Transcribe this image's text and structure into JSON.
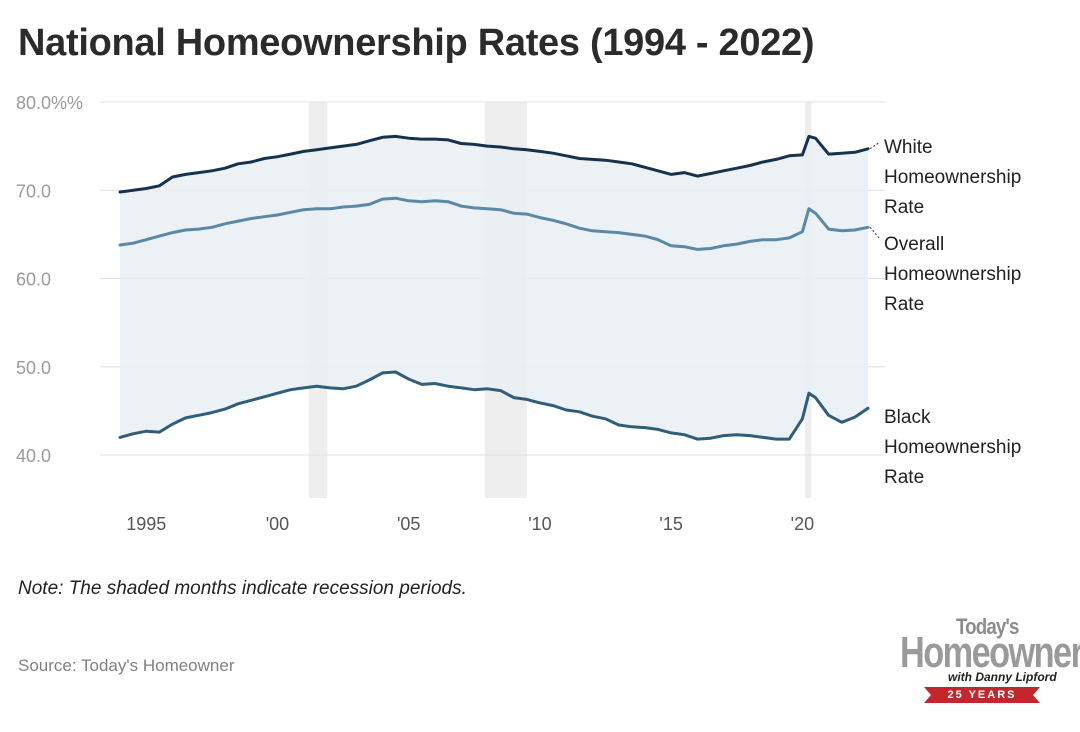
{
  "title": "National Homeownership Rates (1994 - 2022)",
  "note": "Note: The shaded months indicate recession periods.",
  "source": "Source: Today's Homeowner",
  "logo": {
    "line1": "Today's",
    "line2": "Homeowner",
    "line3": "with Danny Lipford",
    "badge": "25 YEARS"
  },
  "colors": {
    "white": "#17324d",
    "overall": "#5b88a5",
    "black": "#2f5d7a",
    "band": "#e8eff3",
    "recession": "#eeeeee",
    "grid": "#e0e0e0"
  },
  "chart_data": {
    "type": "line",
    "title": "National Homeownership Rates (1994 - 2022)",
    "xlabel": "",
    "ylabel": "",
    "ylim": [
      35,
      80
    ],
    "xlim": [
      1993.0,
      2023.0
    ],
    "y_ticks": [
      {
        "value": 80,
        "label": "80.0%%"
      },
      {
        "value": 70,
        "label": "70.0"
      },
      {
        "value": 60,
        "label": "60.0"
      },
      {
        "value": 50,
        "label": "50.0"
      },
      {
        "value": 40,
        "label": "40.0"
      }
    ],
    "x_ticks": [
      {
        "value": 1995,
        "label": "1995"
      },
      {
        "value": 2000,
        "label": "'00"
      },
      {
        "value": 2005,
        "label": "'05"
      },
      {
        "value": 2010,
        "label": "'10"
      },
      {
        "value": 2015,
        "label": "'15"
      },
      {
        "value": 2020,
        "label": "'20"
      }
    ],
    "recessions": [
      [
        2001.2,
        2001.9
      ],
      [
        2007.9,
        2009.5
      ],
      [
        2020.1,
        2020.35
      ]
    ],
    "shaded_band": {
      "between": [
        "White Homeownership Rate",
        "Black Homeownership Rate"
      ]
    },
    "series": [
      {
        "name": "White Homeownership Rate",
        "label_lines": [
          "White",
          "Homeownership",
          "Rate"
        ],
        "x": [
          1994.0,
          1994.5,
          1995.0,
          1995.5,
          1996.0,
          1996.5,
          1997.0,
          1997.5,
          1998.0,
          1998.5,
          1999.0,
          1999.5,
          2000.0,
          2000.5,
          2001.0,
          2001.5,
          2002.0,
          2002.5,
          2003.0,
          2003.5,
          2004.0,
          2004.5,
          2005.0,
          2005.5,
          2006.0,
          2006.5,
          2007.0,
          2007.5,
          2008.0,
          2008.5,
          2009.0,
          2009.5,
          2010.0,
          2010.5,
          2011.0,
          2011.5,
          2012.0,
          2012.5,
          2013.0,
          2013.5,
          2014.0,
          2014.5,
          2015.0,
          2015.5,
          2016.0,
          2016.5,
          2017.0,
          2017.5,
          2018.0,
          2018.5,
          2019.0,
          2019.5,
          2020.0,
          2020.25,
          2020.5,
          2021.0,
          2021.5,
          2022.0,
          2022.5
        ],
        "values": [
          69.8,
          70.0,
          70.2,
          70.5,
          71.5,
          71.8,
          72.0,
          72.2,
          72.5,
          73.0,
          73.2,
          73.6,
          73.8,
          74.1,
          74.4,
          74.6,
          74.8,
          75.0,
          75.2,
          75.6,
          76.0,
          76.1,
          75.9,
          75.8,
          75.8,
          75.7,
          75.3,
          75.2,
          75.0,
          74.9,
          74.7,
          74.6,
          74.4,
          74.2,
          73.9,
          73.6,
          73.5,
          73.4,
          73.2,
          73.0,
          72.6,
          72.2,
          71.8,
          72.0,
          71.6,
          71.9,
          72.2,
          72.5,
          72.8,
          73.2,
          73.5,
          73.9,
          74.0,
          76.1,
          75.9,
          74.1,
          74.2,
          74.3,
          74.7
        ]
      },
      {
        "name": "Overall Homeownership Rate",
        "label_lines": [
          "Overall",
          "Homeownership",
          "Rate"
        ],
        "x": [
          1994.0,
          1994.5,
          1995.0,
          1995.5,
          1996.0,
          1996.5,
          1997.0,
          1997.5,
          1998.0,
          1998.5,
          1999.0,
          1999.5,
          2000.0,
          2000.5,
          2001.0,
          2001.5,
          2002.0,
          2002.5,
          2003.0,
          2003.5,
          2004.0,
          2004.5,
          2005.0,
          2005.5,
          2006.0,
          2006.5,
          2007.0,
          2007.5,
          2008.0,
          2008.5,
          2009.0,
          2009.5,
          2010.0,
          2010.5,
          2011.0,
          2011.5,
          2012.0,
          2012.5,
          2013.0,
          2013.5,
          2014.0,
          2014.5,
          2015.0,
          2015.5,
          2016.0,
          2016.5,
          2017.0,
          2017.5,
          2018.0,
          2018.5,
          2019.0,
          2019.5,
          2020.0,
          2020.25,
          2020.5,
          2021.0,
          2021.5,
          2022.0,
          2022.5
        ],
        "values": [
          63.8,
          64.0,
          64.4,
          64.8,
          65.2,
          65.5,
          65.6,
          65.8,
          66.2,
          66.5,
          66.8,
          67.0,
          67.2,
          67.5,
          67.8,
          67.9,
          67.9,
          68.1,
          68.2,
          68.4,
          69.0,
          69.1,
          68.8,
          68.7,
          68.8,
          68.7,
          68.2,
          68.0,
          67.9,
          67.8,
          67.4,
          67.3,
          66.9,
          66.6,
          66.2,
          65.7,
          65.4,
          65.3,
          65.2,
          65.0,
          64.8,
          64.4,
          63.7,
          63.6,
          63.3,
          63.4,
          63.7,
          63.9,
          64.2,
          64.4,
          64.4,
          64.6,
          65.3,
          67.9,
          67.4,
          65.6,
          65.4,
          65.5,
          65.8
        ]
      },
      {
        "name": "Black Homeownership Rate",
        "label_lines": [
          "Black",
          "Homeownership",
          "Rate"
        ],
        "x": [
          1994.0,
          1994.5,
          1995.0,
          1995.5,
          1996.0,
          1996.5,
          1997.0,
          1997.5,
          1998.0,
          1998.5,
          1999.0,
          1999.5,
          2000.0,
          2000.5,
          2001.0,
          2001.5,
          2002.0,
          2002.5,
          2003.0,
          2003.5,
          2004.0,
          2004.5,
          2005.0,
          2005.5,
          2006.0,
          2006.5,
          2007.0,
          2007.5,
          2008.0,
          2008.5,
          2009.0,
          2009.5,
          2010.0,
          2010.5,
          2011.0,
          2011.5,
          2012.0,
          2012.5,
          2013.0,
          2013.5,
          2014.0,
          2014.5,
          2015.0,
          2015.5,
          2016.0,
          2016.5,
          2017.0,
          2017.5,
          2018.0,
          2018.5,
          2019.0,
          2019.5,
          2020.0,
          2020.25,
          2020.5,
          2021.0,
          2021.5,
          2022.0,
          2022.5
        ],
        "values": [
          42.0,
          42.4,
          42.7,
          42.6,
          43.5,
          44.2,
          44.5,
          44.8,
          45.2,
          45.8,
          46.2,
          46.6,
          47.0,
          47.4,
          47.6,
          47.8,
          47.6,
          47.5,
          47.8,
          48.5,
          49.3,
          49.4,
          48.6,
          48.0,
          48.1,
          47.8,
          47.6,
          47.4,
          47.5,
          47.3,
          46.5,
          46.3,
          45.9,
          45.6,
          45.1,
          44.9,
          44.4,
          44.1,
          43.4,
          43.2,
          43.1,
          42.9,
          42.5,
          42.3,
          41.8,
          41.9,
          42.2,
          42.3,
          42.2,
          42.0,
          41.8,
          41.8,
          44.1,
          47.0,
          46.5,
          44.5,
          43.7,
          44.3,
          45.3
        ]
      }
    ]
  }
}
